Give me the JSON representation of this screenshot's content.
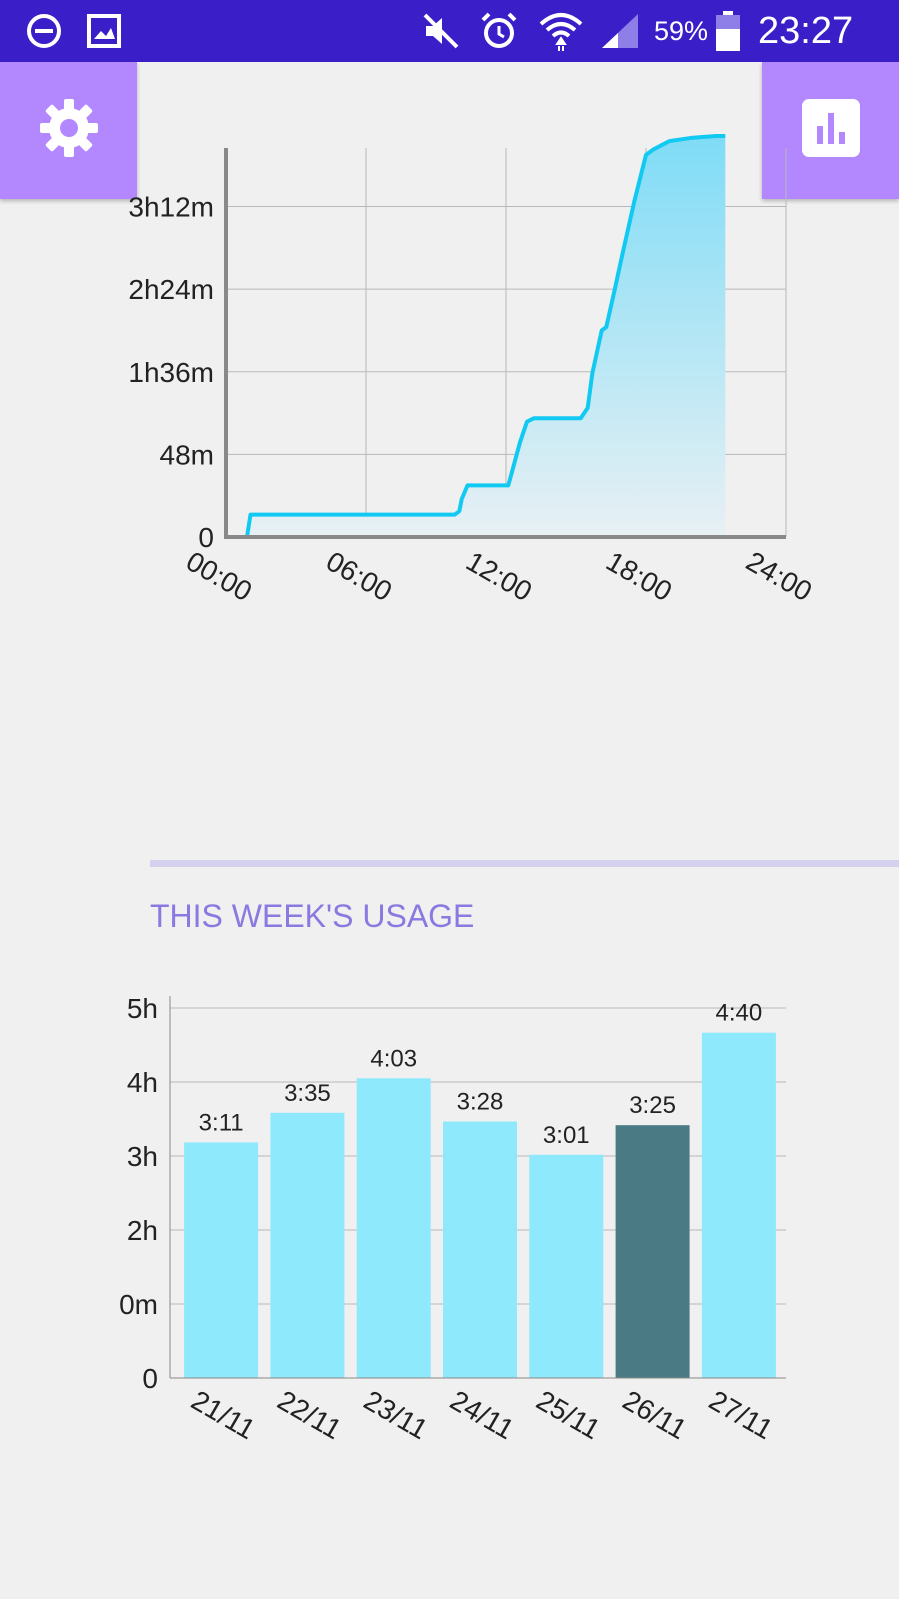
{
  "status_bar": {
    "icons": [
      "do-not-disturb-icon",
      "image-icon",
      "mute-icon",
      "alarm-icon",
      "wifi-icon",
      "signal-icon",
      "battery-icon"
    ],
    "battery": "59%",
    "time": "23:27",
    "color": "#3a1fc9"
  },
  "toolbar": {
    "settings_icon": "gear-icon",
    "stats_icon": "bar-chart-icon",
    "button_color": "#b388ff"
  },
  "week_section": {
    "title": "THIS WEEK'S USAGE"
  },
  "chart_data": [
    {
      "type": "area",
      "title": "",
      "xlabel": "",
      "ylabel": "",
      "x_ticks": [
        "00:00",
        "06:00",
        "12:00",
        "18:00",
        "24:00"
      ],
      "y_ticks": [
        "0",
        "48m",
        "1h36m",
        "2h24m",
        "3h12m"
      ],
      "xlim": [
        0,
        24
      ],
      "ylim": [
        0,
        226
      ],
      "grid": true,
      "line_color": "#12c9f2",
      "series": [
        {
          "x": [
            0,
            0.9,
            1.05,
            9.8,
            10.0,
            10.1,
            10.35,
            11.0,
            12.1,
            12.3,
            12.6,
            12.9,
            13.2,
            14.0,
            15.2,
            15.5,
            15.7,
            16.1,
            16.3,
            16.6,
            17.0,
            17.5,
            18.0,
            18.3,
            19.0,
            20.0,
            21.0,
            21.4
          ],
          "y": [
            0,
            0,
            13,
            13,
            15,
            22,
            30,
            30,
            30,
            40,
            55,
            67,
            69,
            69,
            69,
            75,
            95,
            120,
            122,
            140,
            165,
            195,
            222,
            225,
            230,
            232,
            233,
            233
          ]
        }
      ]
    },
    {
      "type": "bar",
      "title": "",
      "xlabel": "",
      "ylabel": "",
      "categories": [
        "21/11",
        "22/11",
        "23/11",
        "24/11",
        "25/11",
        "26/11",
        "27/11"
      ],
      "values": [
        191,
        215,
        243,
        208,
        181,
        205,
        280
      ],
      "labels": [
        "3:11",
        "3:35",
        "4:03",
        "3:28",
        "3:01",
        "3:25",
        "4:40"
      ],
      "y_ticks": [
        "0",
        "0m",
        "2h",
        "3h",
        "4h",
        "5h"
      ],
      "ylim": [
        0,
        300
      ],
      "grid": true,
      "bar_color": "#8fe9fc",
      "highlight_color": "#4a7b85",
      "highlight_index": 5
    }
  ]
}
